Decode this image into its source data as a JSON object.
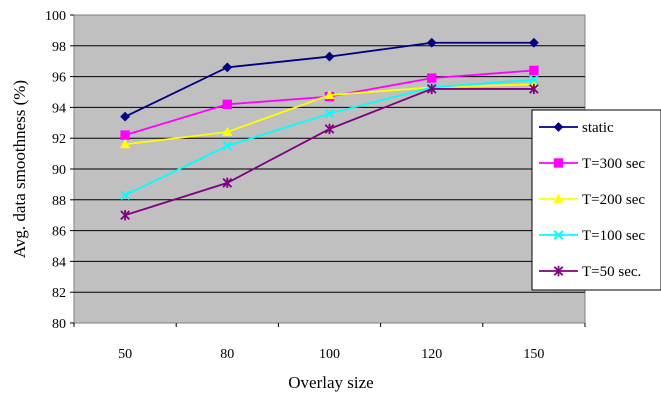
{
  "chart_data": {
    "type": "line",
    "title": "",
    "xlabel": "Overlay size",
    "ylabel": "Avg. data smoothness (%)",
    "categories": [
      "50",
      "80",
      "100",
      "120",
      "150"
    ],
    "ylim": [
      80,
      100
    ],
    "yticks": [
      "80",
      "82",
      "84",
      "86",
      "88",
      "90",
      "92",
      "94",
      "96",
      "98",
      "100"
    ],
    "grid": "horizontal",
    "plot_background": "#c0c0c0",
    "legend_position": "right",
    "series": [
      {
        "name": "static",
        "color": "#000080",
        "marker": "diamond",
        "values": [
          93.4,
          96.6,
          97.3,
          98.2,
          98.2
        ]
      },
      {
        "name": "T=300 sec",
        "color": "#ff00ff",
        "marker": "square",
        "values": [
          92.2,
          94.2,
          94.7,
          95.9,
          96.4
        ]
      },
      {
        "name": "T=200 sec",
        "color": "#ffff00",
        "marker": "triangle",
        "values": [
          91.6,
          92.4,
          94.8,
          95.3,
          95.5
        ]
      },
      {
        "name": "T=100 sec",
        "color": "#00ffff",
        "marker": "x",
        "values": [
          88.3,
          91.5,
          93.6,
          95.3,
          95.8
        ]
      },
      {
        "name": "T=50 sec.",
        "color": "#800080",
        "marker": "star",
        "values": [
          87.0,
          89.1,
          92.6,
          95.2,
          95.2
        ]
      }
    ]
  }
}
